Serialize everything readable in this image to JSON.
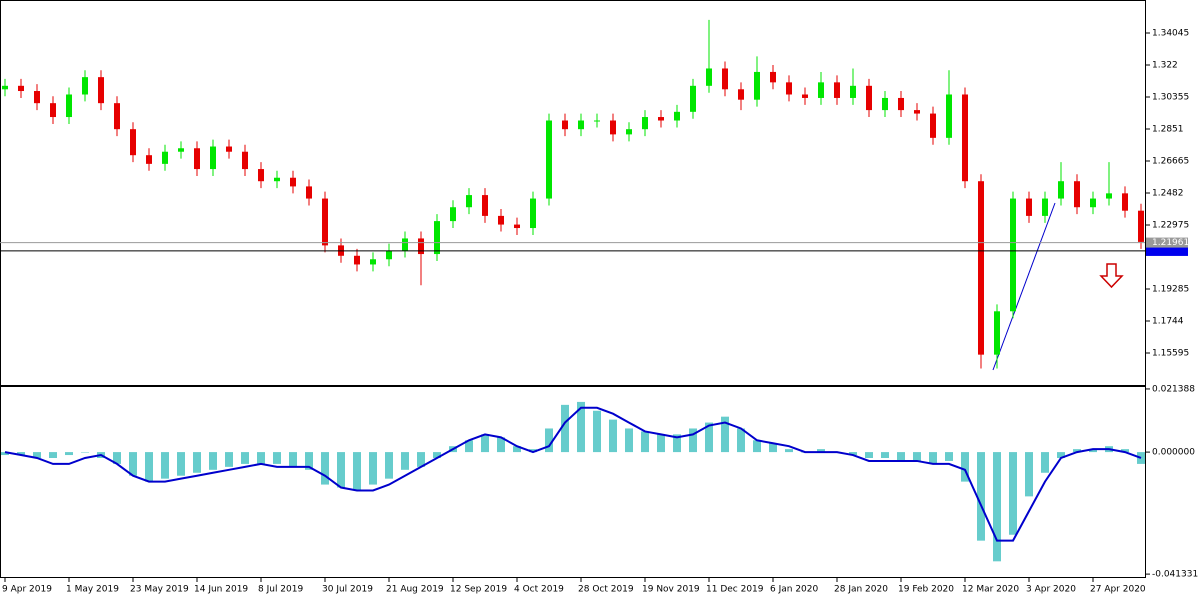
{
  "chart_data": [
    {
      "type": "candlestick",
      "categories": [
        "9 Apr 2019",
        null,
        null,
        null,
        "1 May 2019",
        null,
        null,
        null,
        "23 May 2019",
        null,
        null,
        null,
        "14 Jun 2019",
        null,
        null,
        null,
        "8 Jul 2019",
        null,
        null,
        null,
        "30 Jul 2019",
        null,
        null,
        null,
        "21 Aug 2019",
        null,
        null,
        null,
        "12 Sep 2019",
        null,
        null,
        null,
        "4 Oct 2019",
        null,
        null,
        null,
        "28 Oct 2019",
        null,
        null,
        null,
        "19 Nov 2019",
        null,
        null,
        null,
        "11 Dec 2019",
        null,
        null,
        null,
        "6 Jan 2020",
        null,
        null,
        null,
        "28 Jan 2020",
        null,
        null,
        null,
        "19 Feb 2020",
        null,
        null,
        null,
        "12 Mar 2020",
        null,
        null,
        null,
        "3 Apr 2020",
        null,
        null,
        null,
        "27 Apr 2020",
        null,
        null,
        null
      ],
      "open": [
        1.308,
        1.31,
        1.307,
        1.3,
        1.292,
        1.305,
        1.315,
        1.3,
        1.285,
        1.27,
        1.265,
        1.272,
        1.274,
        1.262,
        1.275,
        1.272,
        1.262,
        1.255,
        1.257,
        1.252,
        1.245,
        1.218,
        1.212,
        1.207,
        1.21,
        1.215,
        1.222,
        1.213,
        1.232,
        1.24,
        1.247,
        1.235,
        1.23,
        1.228,
        1.245,
        1.29,
        1.285,
        1.29,
        1.29,
        1.282,
        1.285,
        1.292,
        1.29,
        1.295,
        1.31,
        1.32,
        1.308,
        1.302,
        1.318,
        1.312,
        1.305,
        1.303,
        1.312,
        1.303,
        1.31,
        1.296,
        1.303,
        1.296,
        1.294,
        1.28,
        1.305,
        1.255,
        1.155,
        1.18,
        1.245,
        1.235,
        1.245,
        1.255,
        1.24,
        1.245,
        1.248,
        1.238
      ],
      "high": [
        1.314,
        1.314,
        1.311,
        1.304,
        1.309,
        1.319,
        1.319,
        1.304,
        1.289,
        1.274,
        1.276,
        1.278,
        1.278,
        1.279,
        1.279,
        1.276,
        1.266,
        1.261,
        1.261,
        1.256,
        1.249,
        1.222,
        1.216,
        1.214,
        1.219,
        1.226,
        1.226,
        1.236,
        1.244,
        1.251,
        1.251,
        1.239,
        1.234,
        1.249,
        1.294,
        1.294,
        1.294,
        1.294,
        1.294,
        1.289,
        1.296,
        1.296,
        1.299,
        1.314,
        1.348,
        1.324,
        1.312,
        1.327,
        1.322,
        1.316,
        1.309,
        1.318,
        1.316,
        1.32,
        1.314,
        1.307,
        1.307,
        1.3,
        1.298,
        1.319,
        1.309,
        1.259,
        1.184,
        1.249,
        1.249,
        1.249,
        1.266,
        1.259,
        1.249,
        1.266,
        1.252,
        1.242
      ],
      "low": [
        1.304,
        1.303,
        1.296,
        1.288,
        1.288,
        1.301,
        1.296,
        1.281,
        1.266,
        1.261,
        1.261,
        1.268,
        1.258,
        1.258,
        1.268,
        1.258,
        1.251,
        1.251,
        1.248,
        1.241,
        1.214,
        1.208,
        1.203,
        1.203,
        1.206,
        1.211,
        1.195,
        1.209,
        1.228,
        1.236,
        1.231,
        1.226,
        1.224,
        1.224,
        1.241,
        1.281,
        1.281,
        1.286,
        1.278,
        1.278,
        1.281,
        1.286,
        1.286,
        1.291,
        1.306,
        1.304,
        1.296,
        1.298,
        1.308,
        1.301,
        1.299,
        1.299,
        1.299,
        1.299,
        1.292,
        1.292,
        1.292,
        1.29,
        1.276,
        1.276,
        1.251,
        1.147,
        1.147,
        1.176,
        1.231,
        1.231,
        1.241,
        1.236,
        1.236,
        1.241,
        1.234,
        1.216
      ],
      "close": [
        1.31,
        1.307,
        1.3,
        1.292,
        1.305,
        1.315,
        1.3,
        1.285,
        1.27,
        1.265,
        1.272,
        1.274,
        1.262,
        1.275,
        1.272,
        1.262,
        1.255,
        1.257,
        1.252,
        1.245,
        1.218,
        1.212,
        1.207,
        1.21,
        1.215,
        1.222,
        1.213,
        1.232,
        1.24,
        1.247,
        1.235,
        1.23,
        1.228,
        1.245,
        1.29,
        1.285,
        1.29,
        1.29,
        1.282,
        1.285,
        1.292,
        1.29,
        1.295,
        1.31,
        1.32,
        1.308,
        1.302,
        1.318,
        1.312,
        1.305,
        1.303,
        1.312,
        1.303,
        1.31,
        1.296,
        1.303,
        1.296,
        1.294,
        1.28,
        1.305,
        1.255,
        1.155,
        1.18,
        1.245,
        1.235,
        1.245,
        1.255,
        1.24,
        1.245,
        1.248,
        1.238,
        1.22
      ],
      "up_color": "#00e600",
      "down_color": "#e60000",
      "ylim": [
        1.1375,
        1.35948
      ],
      "yticks": [
        1.34045,
        1.322,
        1.30355,
        1.2851,
        1.26665,
        1.2482,
        1.22975,
        1.19285,
        1.1744,
        1.15595
      ],
      "price_line": 1.21961,
      "hline": 1.2148
    },
    {
      "type": "macd",
      "histogram": {
        "color": "#66cccc",
        "values": [
          -0.001,
          -0.001,
          -0.002,
          -0.002,
          -0.001,
          0.0,
          -0.002,
          -0.004,
          -0.008,
          -0.01,
          -0.009,
          -0.008,
          -0.007,
          -0.006,
          -0.005,
          -0.004,
          -0.004,
          -0.004,
          -0.005,
          -0.006,
          -0.011,
          -0.012,
          -0.013,
          -0.011,
          -0.009,
          -0.006,
          -0.005,
          -0.002,
          0.002,
          0.004,
          0.006,
          0.005,
          0.002,
          0.001,
          0.008,
          0.016,
          0.017,
          0.014,
          0.011,
          0.008,
          0.007,
          0.006,
          0.006,
          0.008,
          0.01,
          0.012,
          0.008,
          0.004,
          0.003,
          0.001,
          0.0,
          0.001,
          0.0,
          -0.001,
          -0.002,
          -0.002,
          -0.003,
          -0.003,
          -0.004,
          -0.003,
          -0.01,
          -0.03,
          -0.037,
          -0.028,
          -0.015,
          -0.007,
          -0.002,
          0.001,
          0.001,
          0.002,
          0.001,
          -0.004
        ]
      },
      "signal": {
        "color": "#0000cc",
        "values": [
          0.0,
          -0.001,
          -0.002,
          -0.004,
          -0.004,
          -0.002,
          -0.001,
          -0.004,
          -0.008,
          -0.01,
          -0.01,
          -0.009,
          -0.008,
          -0.007,
          -0.006,
          -0.005,
          -0.004,
          -0.005,
          -0.005,
          -0.005,
          -0.008,
          -0.012,
          -0.013,
          -0.013,
          -0.011,
          -0.008,
          -0.005,
          -0.002,
          0.001,
          0.004,
          0.006,
          0.005,
          0.002,
          0.0,
          0.002,
          0.01,
          0.015,
          0.015,
          0.013,
          0.01,
          0.007,
          0.006,
          0.005,
          0.006,
          0.009,
          0.01,
          0.008,
          0.004,
          0.003,
          0.002,
          0.0,
          0.0,
          0.0,
          -0.001,
          -0.003,
          -0.003,
          -0.003,
          -0.003,
          -0.004,
          -0.004,
          -0.006,
          -0.018,
          -0.03,
          -0.03,
          -0.02,
          -0.01,
          -0.002,
          0.0,
          0.001,
          0.001,
          0.0,
          -0.002
        ]
      },
      "ylim": [
        -0.04265,
        0.02205
      ],
      "yticks": [
        0.021388,
        {
          "value": 0,
          "label": "0.000000"
        },
        -0.041331
      ]
    }
  ]
}
